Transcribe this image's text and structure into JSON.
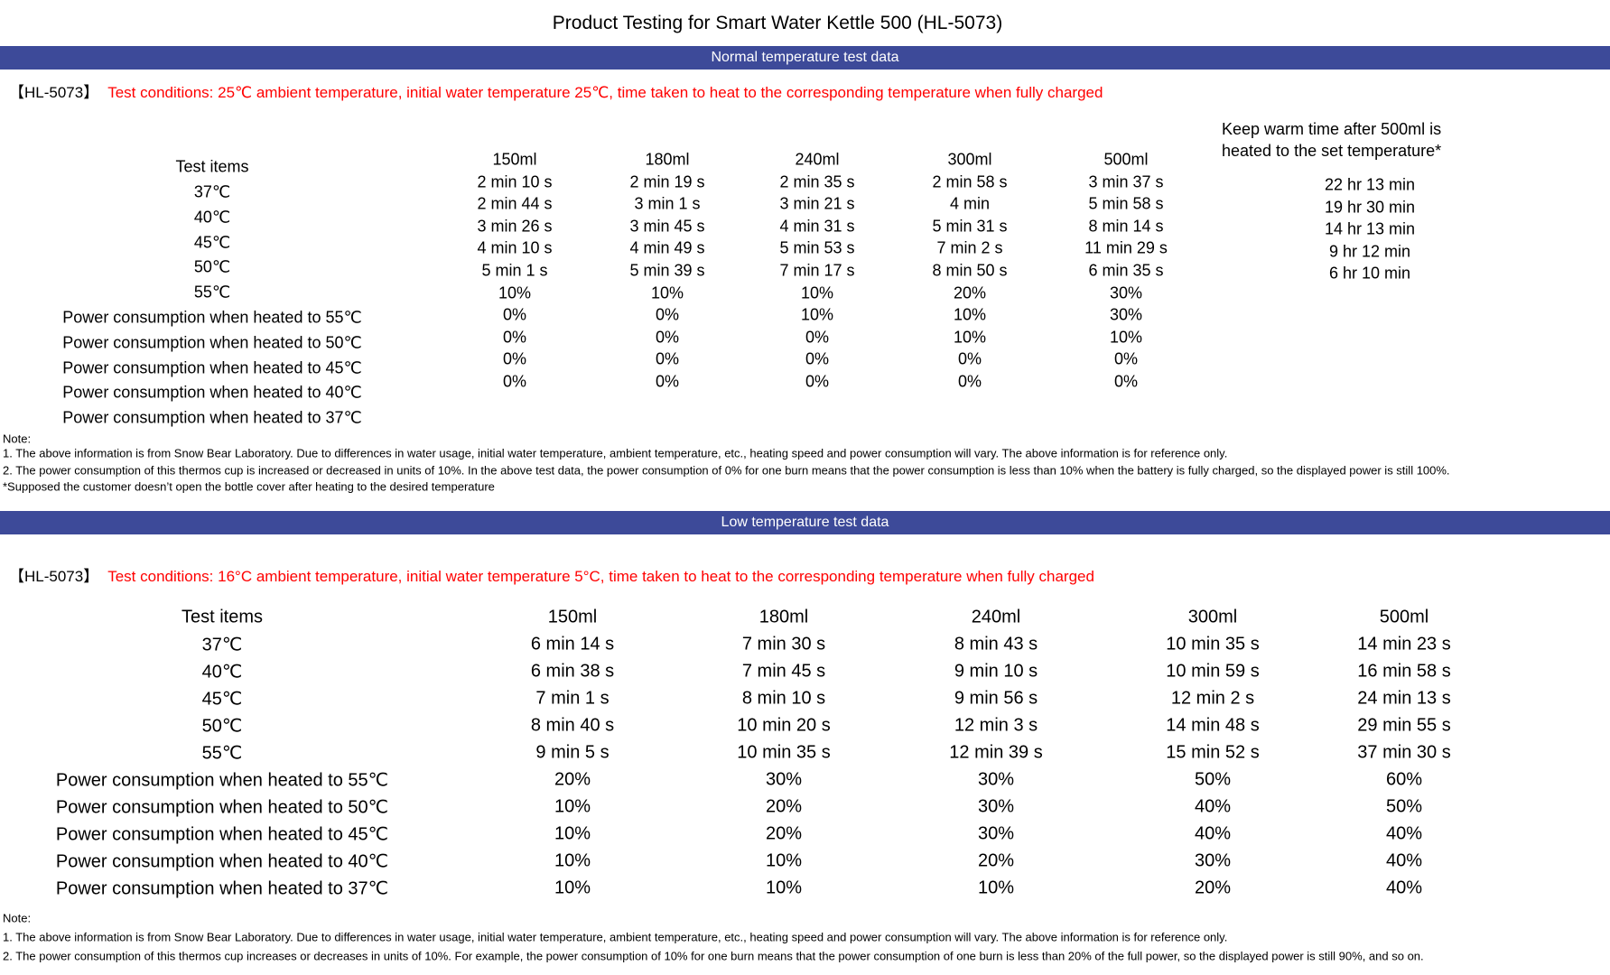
{
  "title": "Product Testing for Smart Water Kettle 500 (HL-5073)",
  "colors": {
    "banner_bg": "#3D4A99",
    "banner_text": "#FFFFFF",
    "conditions_text": "#FF0000",
    "body_text": "#000000"
  },
  "sections": [
    {
      "banner": "Normal temperature test data",
      "model": "【HL-5073】",
      "conditions": "Test conditions: 25℃ ambient temperature, initial water temperature 25℃, time taken to heat to the corresponding temperature when fully charged",
      "table": {
        "row_header": "Test items",
        "columns": [
          "150ml",
          "180ml",
          "240ml",
          "300ml",
          "500ml"
        ],
        "row_labels": [
          "37℃",
          "40℃",
          "45℃",
          "50℃",
          "55℃",
          "Power consumption when heated to 55℃",
          "Power consumption when heated to 50℃",
          "Power consumption when heated to 45℃",
          "Power consumption when heated to 40℃",
          "Power consumption when heated to 37℃"
        ],
        "rows": [
          [
            "2 min 10 s",
            "2 min 19 s",
            "2 min 35 s",
            "2 min 58 s",
            "3 min 37 s"
          ],
          [
            "2 min 44 s",
            "3 min 1 s",
            "3 min 21 s",
            "4 min",
            "5 min 58 s"
          ],
          [
            "3 min 26 s",
            "3 min 45 s",
            "4 min 31 s",
            "5 min 31 s",
            "8 min 14 s"
          ],
          [
            "4 min 10 s",
            "4 min 49 s",
            "5 min 53 s",
            "7 min 2 s",
            "11 min 29 s"
          ],
          [
            "5 min 1 s",
            "5 min 39 s",
            "7 min 17 s",
            "8 min 50 s",
            "6 min 35 s"
          ],
          [
            "10%",
            "10%",
            "10%",
            "20%",
            "30%"
          ],
          [
            "0%",
            "0%",
            "10%",
            "10%",
            "30%"
          ],
          [
            "0%",
            "0%",
            "0%",
            "10%",
            "10%"
          ],
          [
            "0%",
            "0%",
            "0%",
            "0%",
            "0%"
          ],
          [
            "0%",
            "0%",
            "0%",
            "0%",
            "0%"
          ]
        ],
        "keep_warm": {
          "title": "Keep warm time after 500ml is heated to the set temperature*",
          "values": [
            "22 hr 13 min",
            "19 hr 30 min",
            "14 hr 13 min",
            "9 hr 12 min",
            "6 hr 10 min"
          ]
        }
      },
      "notes": [
        "Note:",
        "1. The above information is from Snow Bear Laboratory. Due to differences in water usage, initial water temperature, ambient temperature, etc., heating speed and power consumption will vary. The above information is for reference only.",
        "2. The power consumption of this thermos cup is increased or decreased in units of 10%. In the above test data, the power consumption of 0% for one burn means that the power consumption is less than 10% when the battery is fully charged, so the displayed power is still 100%.",
        "*Supposed the customer doesn’t open the bottle cover after heating to the desired temperature"
      ]
    },
    {
      "banner": "Low temperature test data",
      "model": "【HL-5073】",
      "conditions": "Test conditions: 16°C ambient temperature, initial water temperature 5°C, time taken to heat to the corresponding temperature when fully charged",
      "table": {
        "row_header": "Test items",
        "columns": [
          "150ml",
          "180ml",
          "240ml",
          "300ml",
          "500ml"
        ],
        "row_labels": [
          "37℃",
          "40℃",
          "45℃",
          "50℃",
          "55℃",
          "Power consumption when heated to 55℃",
          "Power consumption when heated to 50℃",
          "Power consumption when heated to 45℃",
          "Power consumption when heated to 40℃",
          "Power consumption when heated to 37℃"
        ],
        "rows": [
          [
            "6 min 14 s",
            "7 min 30 s",
            "8 min 43 s",
            "10 min 35 s",
            "14 min 23 s"
          ],
          [
            "6 min 38 s",
            "7 min 45 s",
            "9 min 10 s",
            "10 min 59 s",
            "16 min 58 s"
          ],
          [
            "7 min 1 s",
            "8 min 10 s",
            "9 min 56 s",
            "12 min 2 s",
            "24 min 13 s"
          ],
          [
            "8 min 40 s",
            "10 min 20 s",
            "12 min 3 s",
            "14 min 48 s",
            "29 min 55 s"
          ],
          [
            "9 min 5 s",
            "10 min 35 s",
            "12 min 39 s",
            "15 min 52 s",
            "37 min 30 s"
          ],
          [
            "20%",
            "30%",
            "30%",
            "50%",
            "60%"
          ],
          [
            "10%",
            "20%",
            "30%",
            "40%",
            "50%"
          ],
          [
            "10%",
            "20%",
            "30%",
            "40%",
            "40%"
          ],
          [
            "10%",
            "10%",
            "20%",
            "30%",
            "40%"
          ],
          [
            "10%",
            "10%",
            "10%",
            "20%",
            "40%"
          ]
        ]
      },
      "notes": [
        "Note:",
        "1. The above information is from Snow Bear Laboratory. Due to differences in water usage, initial water temperature, ambient temperature, etc., heating speed and power consumption will vary. The above information is for reference only.",
        "2. The power consumption of this thermos cup increases or decreases in units of 10%. For example, the power consumption of 10% for one burn means that the power consumption of one burn is less than 20% of the full power, so the displayed power is still 90%, and so on."
      ]
    }
  ]
}
